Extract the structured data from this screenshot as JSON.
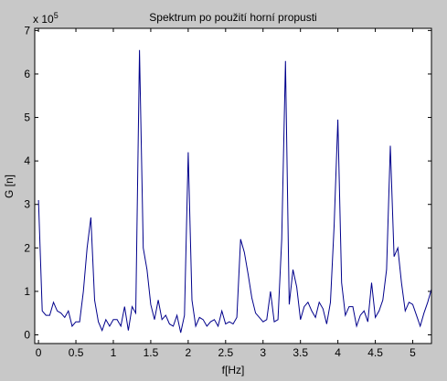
{
  "chart_data": {
    "type": "line",
    "title": "Spektrum po použití horní propusti",
    "xlabel": "f[Hz]",
    "ylabel": "G [n]",
    "y_exponent_label": "x 10",
    "y_exponent_power": "5",
    "xlim": [
      -0.05,
      5.25
    ],
    "ylim": [
      -0.2,
      7.05
    ],
    "xticks": [
      0,
      0.5,
      1,
      1.5,
      2,
      2.5,
      3,
      3.5,
      4,
      4.5,
      5
    ],
    "xtick_labels": [
      "0",
      "0.5",
      "1",
      "1.5",
      "2",
      "2.5",
      "3",
      "3.5",
      "4",
      "4.5",
      "5"
    ],
    "yticks": [
      0,
      1,
      2,
      3,
      4,
      5,
      6,
      7
    ],
    "ytick_labels": [
      "0",
      "1",
      "2",
      "3",
      "4",
      "5",
      "6",
      "7"
    ],
    "grid": false,
    "line_color": "#00008b",
    "series": [
      {
        "x": [
          0,
          0.05,
          0.1,
          0.15,
          0.2,
          0.25,
          0.3,
          0.35,
          0.4,
          0.45,
          0.5,
          0.55,
          0.6,
          0.65,
          0.7,
          0.75,
          0.8,
          0.85,
          0.9,
          0.95,
          1.0,
          1.05,
          1.1,
          1.15,
          1.2,
          1.25,
          1.3,
          1.35,
          1.4,
          1.45,
          1.5,
          1.55,
          1.6,
          1.65,
          1.7,
          1.75,
          1.8,
          1.85,
          1.9,
          1.95,
          2.0,
          2.05,
          2.1,
          2.15,
          2.2,
          2.25,
          2.3,
          2.35,
          2.4,
          2.45,
          2.5,
          2.55,
          2.6,
          2.65,
          2.7,
          2.75,
          2.8,
          2.85,
          2.9,
          2.95,
          3.0,
          3.05,
          3.1,
          3.15,
          3.2,
          3.25,
          3.3,
          3.35,
          3.4,
          3.45,
          3.5,
          3.55,
          3.6,
          3.65,
          3.7,
          3.75,
          3.8,
          3.85,
          3.9,
          3.95,
          4.0,
          4.05,
          4.1,
          4.15,
          4.2,
          4.25,
          4.3,
          4.35,
          4.4,
          4.45,
          4.5,
          4.55,
          4.6,
          4.65,
          4.7,
          4.75,
          4.8,
          4.85,
          4.9,
          4.95,
          5.0,
          5.05,
          5.1,
          5.15,
          5.2,
          5.25
        ],
        "values": [
          3.1,
          0.55,
          0.45,
          0.45,
          0.75,
          0.55,
          0.5,
          0.4,
          0.55,
          0.2,
          0.3,
          0.3,
          1.0,
          2.0,
          2.7,
          0.8,
          0.3,
          0.1,
          0.35,
          0.2,
          0.35,
          0.35,
          0.2,
          0.65,
          0.1,
          0.65,
          0.5,
          6.55,
          2.0,
          1.5,
          0.7,
          0.35,
          0.8,
          0.35,
          0.45,
          0.25,
          0.2,
          0.45,
          0.05,
          0.45,
          4.2,
          0.8,
          0.2,
          0.4,
          0.35,
          0.2,
          0.3,
          0.35,
          0.2,
          0.55,
          0.25,
          0.3,
          0.25,
          0.4,
          2.2,
          1.9,
          1.4,
          0.85,
          0.5,
          0.4,
          0.3,
          0.35,
          1.0,
          0.3,
          0.35,
          2.2,
          6.3,
          0.7,
          1.5,
          1.1,
          0.35,
          0.65,
          0.75,
          0.55,
          0.4,
          0.75,
          0.6,
          0.25,
          0.75,
          2.5,
          4.95,
          1.2,
          0.45,
          0.65,
          0.65,
          0.2,
          0.45,
          0.55,
          0.3,
          1.2,
          0.4,
          0.55,
          0.8,
          1.5,
          4.35,
          1.8,
          2.0,
          1.2,
          0.55,
          0.75,
          0.7,
          0.45,
          0.2,
          0.5,
          0.75,
          1.05
        ]
      }
    ]
  }
}
